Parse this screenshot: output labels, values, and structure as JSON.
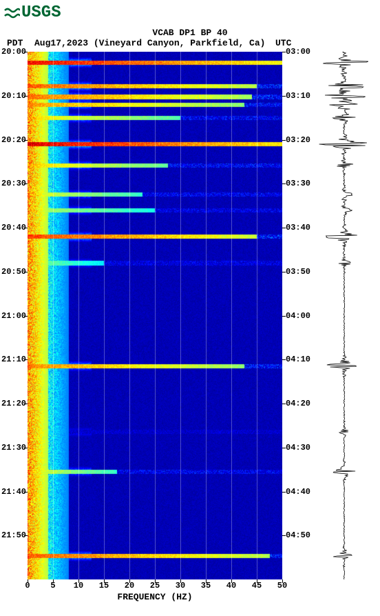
{
  "logo": {
    "text": "USGS",
    "color": "#006633"
  },
  "title": "VCAB DP1 BP 40",
  "header": {
    "pdt_label": "PDT",
    "date_location": "Aug17,2023 (Vineyard Canyon, Parkfield, Ca)",
    "utc_label": "UTC"
  },
  "spectrogram": {
    "type": "spectrogram",
    "background_color": "#00008b",
    "colormap_colors": [
      "#00008b",
      "#0000ff",
      "#0080ff",
      "#00ffff",
      "#80ff80",
      "#ffff00",
      "#ff8000",
      "#ff0000",
      "#800000"
    ],
    "x_axis": {
      "label": "FREQUENCY (HZ)",
      "min": 0,
      "max": 50,
      "ticks": [
        0,
        5,
        10,
        15,
        20,
        25,
        30,
        35,
        40,
        45,
        50
      ],
      "grid_color": "rgba(255,255,255,0.3)"
    },
    "y_axis_left": {
      "label": "PDT",
      "ticks": [
        "20:00",
        "20:10",
        "20:20",
        "20:30",
        "20:40",
        "20:50",
        "21:00",
        "21:10",
        "21:20",
        "21:30",
        "21:40",
        "21:50"
      ]
    },
    "y_axis_right": {
      "label": "UTC",
      "ticks": [
        "03:00",
        "03:10",
        "03:20",
        "03:30",
        "03:40",
        "03:50",
        "04:00",
        "04:10",
        "04:20",
        "04:30",
        "04:40",
        "04:50"
      ]
    },
    "event_bands": [
      {
        "t": 0.02,
        "intensity": 0.95,
        "width": 1.0
      },
      {
        "t": 0.065,
        "intensity": 0.85,
        "width": 0.9
      },
      {
        "t": 0.085,
        "intensity": 0.82,
        "width": 0.88
      },
      {
        "t": 0.1,
        "intensity": 0.78,
        "width": 0.85
      },
      {
        "t": 0.125,
        "intensity": 0.7,
        "width": 0.6
      },
      {
        "t": 0.175,
        "intensity": 0.98,
        "width": 1.0
      },
      {
        "t": 0.215,
        "intensity": 0.72,
        "width": 0.55
      },
      {
        "t": 0.27,
        "intensity": 0.65,
        "width": 0.45
      },
      {
        "t": 0.3,
        "intensity": 0.6,
        "width": 0.5
      },
      {
        "t": 0.35,
        "intensity": 0.88,
        "width": 0.9
      },
      {
        "t": 0.4,
        "intensity": 0.55,
        "width": 0.3
      },
      {
        "t": 0.595,
        "intensity": 0.8,
        "width": 0.85
      },
      {
        "t": 0.72,
        "intensity": 0.4,
        "width": 0.15
      },
      {
        "t": 0.795,
        "intensity": 0.65,
        "width": 0.35
      },
      {
        "t": 0.955,
        "intensity": 0.85,
        "width": 0.95
      }
    ],
    "low_freq_noise_width": 0.08,
    "font_size": 12,
    "font_weight": "bold"
  },
  "seismogram": {
    "type": "waveform",
    "color": "#000000",
    "background": "#ffffff",
    "baseline_x": 0.5,
    "events": [
      {
        "t": 0.02,
        "amp": 0.95
      },
      {
        "t": 0.065,
        "amp": 0.8
      },
      {
        "t": 0.085,
        "amp": 0.78
      },
      {
        "t": 0.1,
        "amp": 0.55
      },
      {
        "t": 0.125,
        "amp": 0.45
      },
      {
        "t": 0.175,
        "amp": 0.9
      },
      {
        "t": 0.215,
        "amp": 0.35
      },
      {
        "t": 0.27,
        "amp": 0.3
      },
      {
        "t": 0.3,
        "amp": 0.28
      },
      {
        "t": 0.35,
        "amp": 0.7
      },
      {
        "t": 0.4,
        "amp": 0.25
      },
      {
        "t": 0.595,
        "amp": 0.6
      },
      {
        "t": 0.72,
        "amp": 0.2
      },
      {
        "t": 0.795,
        "amp": 0.45
      },
      {
        "t": 0.955,
        "amp": 0.4
      }
    ]
  }
}
